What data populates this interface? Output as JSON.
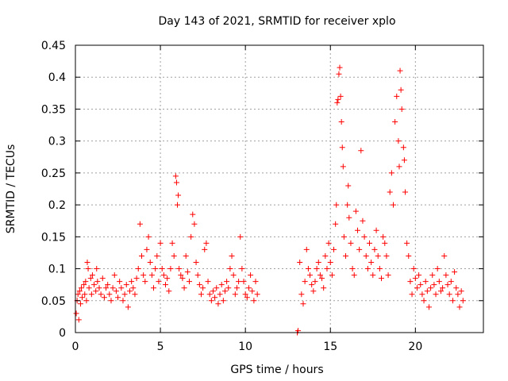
{
  "chart_data": {
    "type": "scatter",
    "title": "Day 143 of 2021, SRMTID for receiver xplo",
    "xlabel": "GPS time / hours",
    "ylabel": "SRMTID / TECUs",
    "xlim": [
      0,
      24
    ],
    "ylim": [
      0,
      0.45
    ],
    "x_ticks": [
      0,
      5,
      10,
      15,
      20
    ],
    "x_tick_labels": [
      "0",
      "5",
      "10",
      "15",
      "20"
    ],
    "y_ticks": [
      0,
      0.05,
      0.1,
      0.15,
      0.2,
      0.25,
      0.3,
      0.35,
      0.4,
      0.45
    ],
    "y_tick_labels": [
      "0",
      "0.05",
      "0.1",
      "0.15",
      "0.2",
      "0.25",
      "0.3",
      "0.35",
      "0.4",
      "0.45"
    ],
    "grid": true,
    "marker": "+",
    "color": "#ff0000",
    "series": [
      {
        "points": [
          [
            0.05,
            0.03
          ],
          [
            0.1,
            0.05
          ],
          [
            0.15,
            0.06
          ],
          [
            0.2,
            0.02
          ],
          [
            0.25,
            0.065
          ],
          [
            0.3,
            0.045
          ],
          [
            0.35,
            0.07
          ],
          [
            0.4,
            0.055
          ],
          [
            0.5,
            0.075
          ],
          [
            0.55,
            0.06
          ],
          [
            0.6,
            0.08
          ],
          [
            0.65,
            0.05
          ],
          [
            0.7,
            0.11
          ],
          [
            0.75,
            0.1
          ],
          [
            0.8,
            0.07
          ],
          [
            0.9,
            0.085
          ],
          [
            0.95,
            0.06
          ],
          [
            1.0,
            0.09
          ],
          [
            1.1,
            0.075
          ],
          [
            1.2,
            0.065
          ],
          [
            1.25,
            0.1
          ],
          [
            1.3,
            0.08
          ],
          [
            1.4,
            0.07
          ],
          [
            1.5,
            0.06
          ],
          [
            1.6,
            0.085
          ],
          [
            1.7,
            0.055
          ],
          [
            1.8,
            0.07
          ],
          [
            1.9,
            0.075
          ],
          [
            2.0,
            0.06
          ],
          [
            2.1,
            0.05
          ],
          [
            2.2,
            0.07
          ],
          [
            2.3,
            0.09
          ],
          [
            2.4,
            0.065
          ],
          [
            2.5,
            0.055
          ],
          [
            2.6,
            0.08
          ],
          [
            2.7,
            0.07
          ],
          [
            2.8,
            0.05
          ],
          [
            2.9,
            0.06
          ],
          [
            3.0,
            0.075
          ],
          [
            3.1,
            0.04
          ],
          [
            3.2,
            0.065
          ],
          [
            3.3,
            0.08
          ],
          [
            3.4,
            0.07
          ],
          [
            3.5,
            0.06
          ],
          [
            3.6,
            0.085
          ],
          [
            3.7,
            0.1
          ],
          [
            3.8,
            0.17
          ],
          [
            3.9,
            0.12
          ],
          [
            4.0,
            0.09
          ],
          [
            4.1,
            0.08
          ],
          [
            4.2,
            0.13
          ],
          [
            4.3,
            0.15
          ],
          [
            4.4,
            0.11
          ],
          [
            4.5,
            0.09
          ],
          [
            4.6,
            0.07
          ],
          [
            4.7,
            0.1
          ],
          [
            4.8,
            0.12
          ],
          [
            4.9,
            0.08
          ],
          [
            5.0,
            0.14
          ],
          [
            5.1,
            0.1
          ],
          [
            5.2,
            0.09
          ],
          [
            5.3,
            0.075
          ],
          [
            5.4,
            0.085
          ],
          [
            5.5,
            0.065
          ],
          [
            5.6,
            0.1
          ],
          [
            5.7,
            0.14
          ],
          [
            5.8,
            0.12
          ],
          [
            5.9,
            0.245
          ],
          [
            5.95,
            0.235
          ],
          [
            6.0,
            0.2
          ],
          [
            6.05,
            0.215
          ],
          [
            6.1,
            0.1
          ],
          [
            6.2,
            0.09
          ],
          [
            6.3,
            0.085
          ],
          [
            6.4,
            0.07
          ],
          [
            6.5,
            0.12
          ],
          [
            6.6,
            0.095
          ],
          [
            6.7,
            0.08
          ],
          [
            6.8,
            0.15
          ],
          [
            6.9,
            0.185
          ],
          [
            7.0,
            0.17
          ],
          [
            7.1,
            0.11
          ],
          [
            7.2,
            0.09
          ],
          [
            7.3,
            0.075
          ],
          [
            7.4,
            0.06
          ],
          [
            7.5,
            0.07
          ],
          [
            7.6,
            0.13
          ],
          [
            7.7,
            0.14
          ],
          [
            7.8,
            0.08
          ],
          [
            7.9,
            0.06
          ],
          [
            8.0,
            0.05
          ],
          [
            8.1,
            0.065
          ],
          [
            8.2,
            0.055
          ],
          [
            8.3,
            0.07
          ],
          [
            8.4,
            0.045
          ],
          [
            8.5,
            0.06
          ],
          [
            8.6,
            0.075
          ],
          [
            8.7,
            0.05
          ],
          [
            8.8,
            0.065
          ],
          [
            8.9,
            0.08
          ],
          [
            9.0,
            0.07
          ],
          [
            9.1,
            0.1
          ],
          [
            9.2,
            0.12
          ],
          [
            9.3,
            0.09
          ],
          [
            9.4,
            0.06
          ],
          [
            9.5,
            0.07
          ],
          [
            9.6,
            0.08
          ],
          [
            9.7,
            0.15
          ],
          [
            9.8,
            0.1
          ],
          [
            9.9,
            0.08
          ],
          [
            10.0,
            0.06
          ],
          [
            10.1,
            0.055
          ],
          [
            10.2,
            0.07
          ],
          [
            10.3,
            0.09
          ],
          [
            10.4,
            0.065
          ],
          [
            10.5,
            0.05
          ],
          [
            10.6,
            0.08
          ],
          [
            10.7,
            0.06
          ],
          [
            13.05,
            0.0
          ],
          [
            13.1,
            0.003
          ],
          [
            13.2,
            0.11
          ],
          [
            13.3,
            0.06
          ],
          [
            13.4,
            0.045
          ],
          [
            13.5,
            0.08
          ],
          [
            13.6,
            0.13
          ],
          [
            13.7,
            0.1
          ],
          [
            13.8,
            0.09
          ],
          [
            13.9,
            0.075
          ],
          [
            14.0,
            0.065
          ],
          [
            14.1,
            0.08
          ],
          [
            14.2,
            0.1
          ],
          [
            14.3,
            0.11
          ],
          [
            14.4,
            0.09
          ],
          [
            14.5,
            0.085
          ],
          [
            14.6,
            0.07
          ],
          [
            14.7,
            0.12
          ],
          [
            14.8,
            0.1
          ],
          [
            14.9,
            0.14
          ],
          [
            15.0,
            0.11
          ],
          [
            15.1,
            0.09
          ],
          [
            15.2,
            0.13
          ],
          [
            15.3,
            0.17
          ],
          [
            15.35,
            0.2
          ],
          [
            15.4,
            0.36
          ],
          [
            15.45,
            0.365
          ],
          [
            15.5,
            0.405
          ],
          [
            15.55,
            0.415
          ],
          [
            15.6,
            0.37
          ],
          [
            15.65,
            0.33
          ],
          [
            15.7,
            0.29
          ],
          [
            15.75,
            0.26
          ],
          [
            15.8,
            0.15
          ],
          [
            15.9,
            0.12
          ],
          [
            16.0,
            0.2
          ],
          [
            16.05,
            0.23
          ],
          [
            16.1,
            0.18
          ],
          [
            16.2,
            0.14
          ],
          [
            16.3,
            0.1
          ],
          [
            16.4,
            0.09
          ],
          [
            16.5,
            0.19
          ],
          [
            16.6,
            0.16
          ],
          [
            16.7,
            0.13
          ],
          [
            16.8,
            0.285
          ],
          [
            16.9,
            0.175
          ],
          [
            17.0,
            0.15
          ],
          [
            17.1,
            0.12
          ],
          [
            17.2,
            0.1
          ],
          [
            17.3,
            0.14
          ],
          [
            17.4,
            0.11
          ],
          [
            17.5,
            0.09
          ],
          [
            17.6,
            0.13
          ],
          [
            17.7,
            0.16
          ],
          [
            17.8,
            0.12
          ],
          [
            17.9,
            0.1
          ],
          [
            18.0,
            0.085
          ],
          [
            18.1,
            0.15
          ],
          [
            18.2,
            0.14
          ],
          [
            18.3,
            0.12
          ],
          [
            18.4,
            0.09
          ],
          [
            18.5,
            0.22
          ],
          [
            18.6,
            0.25
          ],
          [
            18.7,
            0.2
          ],
          [
            18.8,
            0.33
          ],
          [
            18.9,
            0.37
          ],
          [
            19.0,
            0.3
          ],
          [
            19.05,
            0.26
          ],
          [
            19.1,
            0.41
          ],
          [
            19.15,
            0.38
          ],
          [
            19.2,
            0.35
          ],
          [
            19.3,
            0.29
          ],
          [
            19.35,
            0.27
          ],
          [
            19.4,
            0.22
          ],
          [
            19.5,
            0.14
          ],
          [
            19.6,
            0.12
          ],
          [
            19.7,
            0.08
          ],
          [
            19.8,
            0.06
          ],
          [
            19.9,
            0.1
          ],
          [
            20.0,
            0.085
          ],
          [
            20.1,
            0.07
          ],
          [
            20.2,
            0.09
          ],
          [
            20.3,
            0.075
          ],
          [
            20.4,
            0.06
          ],
          [
            20.5,
            0.05
          ],
          [
            20.6,
            0.08
          ],
          [
            20.7,
            0.065
          ],
          [
            20.8,
            0.04
          ],
          [
            20.9,
            0.07
          ],
          [
            21.0,
            0.09
          ],
          [
            21.1,
            0.075
          ],
          [
            21.2,
            0.06
          ],
          [
            21.3,
            0.1
          ],
          [
            21.4,
            0.08
          ],
          [
            21.5,
            0.065
          ],
          [
            21.6,
            0.07
          ],
          [
            21.7,
            0.12
          ],
          [
            21.8,
            0.09
          ],
          [
            21.9,
            0.075
          ],
          [
            22.0,
            0.06
          ],
          [
            22.1,
            0.08
          ],
          [
            22.2,
            0.05
          ],
          [
            22.3,
            0.095
          ],
          [
            22.4,
            0.07
          ],
          [
            22.5,
            0.06
          ],
          [
            22.6,
            0.04
          ],
          [
            22.7,
            0.065
          ],
          [
            22.8,
            0.05
          ]
        ]
      }
    ]
  }
}
